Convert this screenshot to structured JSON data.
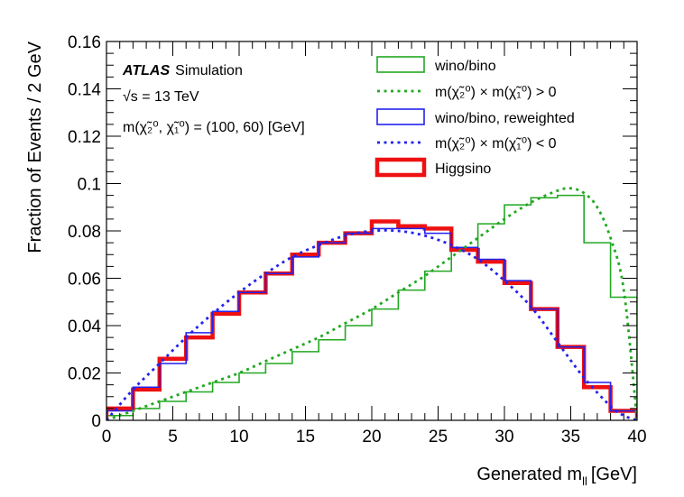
{
  "chart_data": {
    "type": "line",
    "xlabel": "Generated m",
    "xlabel_subscript": "ll",
    "xlabel_unit": "[GeV]",
    "ylabel": "Fraction of Events / 2 GeV",
    "xlim": [
      0,
      40
    ],
    "ylim": [
      0,
      0.16
    ],
    "x_ticks": [
      0,
      5,
      10,
      15,
      20,
      25,
      30,
      35,
      40
    ],
    "x_tick_labels": [
      "0",
      "5",
      "10",
      "15",
      "20",
      "25",
      "30",
      "35",
      "40"
    ],
    "y_ticks": [
      0,
      0.02,
      0.04,
      0.06,
      0.08,
      0.1,
      0.12,
      0.14,
      0.16
    ],
    "y_tick_labels": [
      "0",
      "0.02",
      "0.04",
      "0.06",
      "0.08",
      "0.1",
      "0.12",
      "0.14",
      "0.16"
    ],
    "grid": false,
    "legend_position": "top-right",
    "annotations": {
      "experiment": "ATLAS",
      "label": "Simulation",
      "energy": "√s = 13 TeV",
      "mass": "m(χ̃₂⁰, χ̃₁⁰) = (100, 60) [GeV]"
    },
    "bin_edges": [
      0,
      2,
      4,
      6,
      8,
      10,
      12,
      14,
      16,
      18,
      20,
      22,
      24,
      26,
      28,
      30,
      32,
      34,
      36,
      38,
      40
    ],
    "series": [
      {
        "name": "wino/bino",
        "kind": "histogram",
        "color": "#22a822",
        "values": [
          0.002,
          0.005,
          0.008,
          0.012,
          0.016,
          0.02,
          0.024,
          0.029,
          0.034,
          0.04,
          0.047,
          0.055,
          0.063,
          0.073,
          0.083,
          0.091,
          0.094,
          0.095,
          0.075,
          0.052
        ]
      },
      {
        "name": "m(χ̃₂⁰) × m(χ̃₁⁰) > 0",
        "kind": "dotted-curve",
        "color": "#22a822",
        "x": [
          0,
          2,
          4,
          6,
          8,
          10,
          12,
          14,
          16,
          18,
          20,
          22,
          24,
          26,
          28,
          30,
          32,
          34,
          35,
          36,
          37,
          38,
          39,
          40
        ],
        "y": [
          0.0,
          0.004,
          0.008,
          0.012,
          0.016,
          0.02,
          0.025,
          0.03,
          0.035,
          0.041,
          0.047,
          0.054,
          0.061,
          0.069,
          0.077,
          0.085,
          0.092,
          0.097,
          0.098,
          0.096,
          0.09,
          0.077,
          0.055,
          0.0
        ]
      },
      {
        "name": "wino/bino, reweighted",
        "kind": "histogram",
        "color": "#2222ee",
        "values": [
          0.004,
          0.014,
          0.024,
          0.037,
          0.046,
          0.054,
          0.062,
          0.069,
          0.075,
          0.079,
          0.081,
          0.081,
          0.079,
          0.073,
          0.068,
          0.059,
          0.047,
          0.031,
          0.016,
          0.004
        ]
      },
      {
        "name": "m(χ̃₂⁰) × m(χ̃₁⁰) < 0",
        "kind": "dotted-curve",
        "color": "#2222ee",
        "x": [
          0,
          2,
          4,
          6,
          8,
          10,
          12,
          14,
          16,
          18,
          20,
          22,
          24,
          26,
          28,
          30,
          32,
          34,
          36,
          38,
          39,
          40
        ],
        "y": [
          0.0,
          0.013,
          0.024,
          0.035,
          0.045,
          0.054,
          0.062,
          0.069,
          0.074,
          0.078,
          0.08,
          0.08,
          0.078,
          0.074,
          0.068,
          0.059,
          0.048,
          0.033,
          0.018,
          0.006,
          0.002,
          0.0
        ]
      },
      {
        "name": "Higgsino",
        "kind": "histogram",
        "color": "#ee1111",
        "values": [
          0.005,
          0.013,
          0.026,
          0.035,
          0.045,
          0.054,
          0.062,
          0.07,
          0.075,
          0.079,
          0.084,
          0.082,
          0.081,
          0.072,
          0.067,
          0.058,
          0.047,
          0.031,
          0.014,
          0.004
        ]
      }
    ]
  }
}
